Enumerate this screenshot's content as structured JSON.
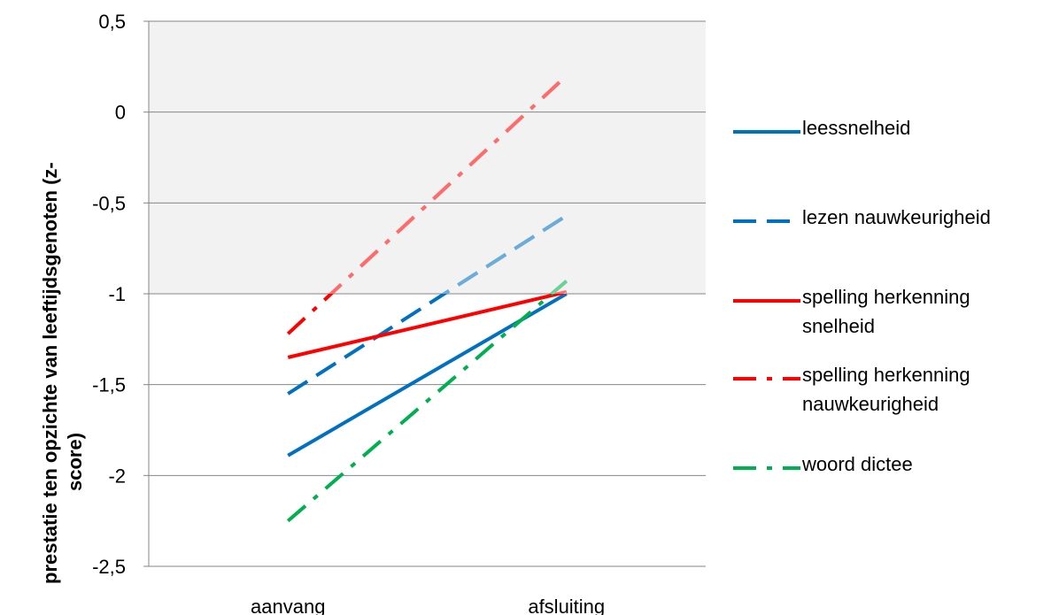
{
  "chart_data": {
    "type": "line",
    "categories": [
      "aanvang",
      "afsluiting"
    ],
    "ylabel": "prestatie ten opzichte van leeftijdsgenoten     (z-score)",
    "ylabel_lines": [
      "prestatie ten opzichte van leeftijdsgenoten     (z-",
      "score)"
    ],
    "ylim": [
      -2.5,
      0.5
    ],
    "yticks": [
      0.5,
      0,
      -0.5,
      -1,
      -1.5,
      -2,
      -2.5
    ],
    "ytick_labels": [
      "0,5",
      "0",
      "-0,5",
      "-1",
      "-1,5",
      "-2",
      "-2,5"
    ],
    "shaded_band": [
      -1,
      0.5
    ],
    "grid": true,
    "legend_position": "right",
    "series": [
      {
        "name": "leessnelheid",
        "values": [
          -1.89,
          -1.0
        ],
        "color": "#0070c0",
        "dash": "solid"
      },
      {
        "name": "lezen nauwkeurigheid",
        "values": [
          -1.55,
          -0.57
        ],
        "color": "#0070c0",
        "dash": "dash"
      },
      {
        "name": "spelling herkenning snelheid",
        "values": [
          -1.35,
          -0.99
        ],
        "color": "#ff0000",
        "dash": "solid"
      },
      {
        "name": "spelling herkenning nauwkeurigheid",
        "values": [
          -1.22,
          0.2
        ],
        "color": "#ff0000",
        "dash": "dashdot"
      },
      {
        "name": "woord dictee",
        "values": [
          -2.25,
          -0.93
        ],
        "color": "#00b050",
        "dash": "dashdot"
      }
    ],
    "legend": [
      {
        "lines": [
          "leessnelheid"
        ]
      },
      {
        "lines": [
          "lezen nauwkeurigheid"
        ]
      },
      {
        "lines": [
          "spelling herkenning",
          "snelheid"
        ]
      },
      {
        "lines": [
          "spelling herkenning",
          "nauwkeurigheid"
        ]
      },
      {
        "lines": [
          "woord dictee"
        ]
      }
    ]
  }
}
